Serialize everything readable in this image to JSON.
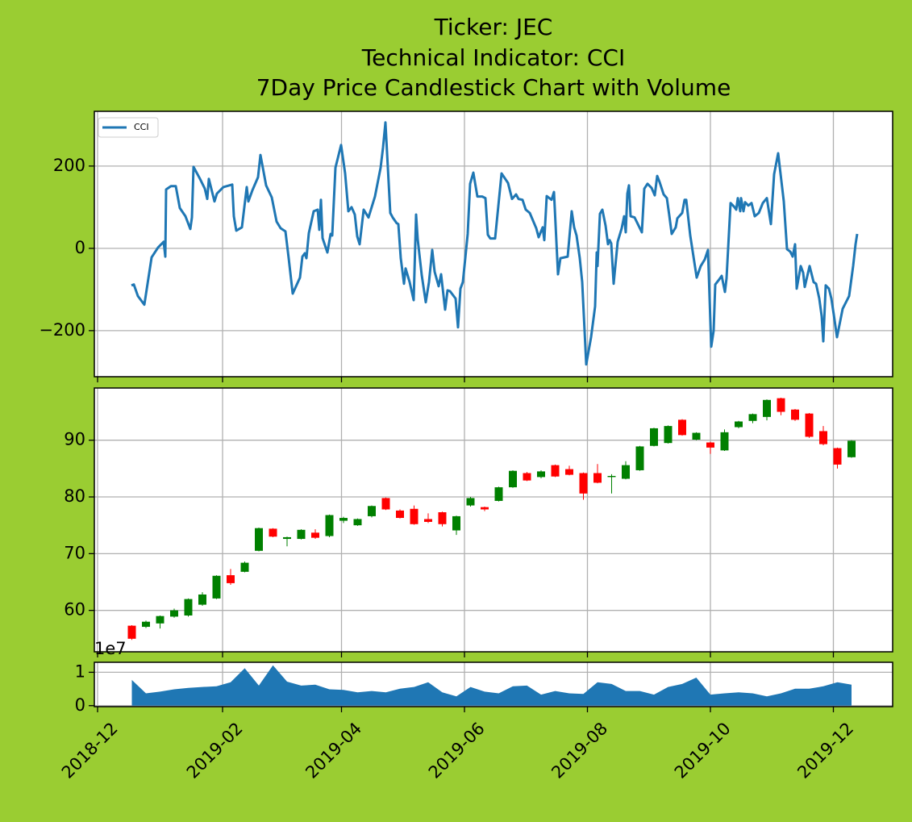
{
  "figure": {
    "title": [
      "Ticker: JEC",
      "Technical Indicator: CCI",
      "7Day Price Candlestick Chart with Volume"
    ]
  },
  "chart_data": [
    {
      "type": "line",
      "legend": "upper left",
      "grid": true,
      "x": [
        16.8,
        18.0,
        20.0,
        23.2,
        26.8,
        30.0,
        32.8,
        33.6,
        34.0,
        36.4,
        38.8,
        40.8,
        43.6,
        46.0,
        46.8,
        47.6,
        50.8,
        53.2,
        54.4,
        55.2,
        58.0,
        59.2,
        62.4,
        66.8,
        67.6,
        68.8,
        71.6,
        74.0,
        74.8,
        76.8,
        79.6,
        80.8,
        83.6,
        86.4,
        88.8,
        90.8,
        93.2,
        94.8,
        96.8,
        100.4,
        101.6,
        102.8,
        103.6,
        104.8,
        107.2,
        109.2,
        110.0,
        110.8,
        111.6,
        114.0,
        115.6,
        116.4,
        118.0,
        120.8,
        122.8,
        124.4,
        126.0,
        127.6,
        128.8,
        130.0,
        132.0,
        134.4,
        137.6,
        140.4,
        141.6,
        142.8,
        145.2,
        146.4,
        148.4,
        149.2,
        150.4,
        152.0,
        152.8,
        154.8,
        156.8,
        158.0,
        158.8,
        160.8,
        162.8,
        164.4,
        166.0,
        167.2,
        169.2,
        170.4,
        172.4,
        173.6,
        174.8,
        177.6,
        178.8,
        180.0,
        181.2,
        182.4,
        183.6,
        184.8,
        186.4,
        188.4,
        190.8,
        192.4,
        193.6,
        194.8,
        197.2,
        200.4,
        203.6,
        205.6,
        207.6,
        208.8,
        210.8,
        212.4,
        214.4,
        217.6,
        218.8,
        220.8,
        221.6,
        222.8,
        225.2,
        226.4,
        228.4,
        229.6,
        233.2,
        235.2,
        236.4,
        237.6,
        239.2,
        240.4,
        242.4,
        244.8,
        246.8,
        247.6,
        248.0,
        249.2,
        250.4,
        252.0,
        253.2,
        254.0,
        254.8,
        256.0,
        258.0,
        260.0,
        261.2,
        262.0,
        262.8,
        263.6,
        264.4,
        266.4,
        268.4,
        270.0,
        271.2,
        272.8,
        274.8,
        276.4,
        277.6,
        278.8,
        280.8,
        282.4,
        283.6,
        284.8,
        286.8,
        287.6,
        290.0,
        291.2,
        292.0,
        294.0,
        295.6,
        297.2,
        299.2,
        301.2,
        302.8,
        304.4,
        305.6,
        306.4,
        308.0,
        309.6,
        311.2,
        312.0,
        314.0,
        315.6,
        316.8,
        317.6,
        318.8,
        319.2,
        320.4,
        321.2,
        322.8,
        324.4,
        326.0,
        328.0,
        330.0,
        332.0,
        334.0,
        335.6,
        337.6,
        340.4,
        342.0,
        343.6,
        344.8,
        346.0,
        346.8,
        348.8,
        350.0,
        350.8,
        353.2,
        355.2,
        356.4,
        358.0,
        359.2,
        360.0,
        361.2,
        362.8,
        364.0,
        365.2,
        366.8,
        369.6,
        372.8,
        374.8,
        376.0,
        376.8
      ],
      "series": [
        {
          "name": "CCI",
          "color": "#1f77b4",
          "values": [
            -90,
            -88,
            -116,
            -137,
            -22,
            2,
            16,
            -20,
            143,
            151,
            151,
            98,
            78,
            47,
            75,
            198,
            169,
            145,
            120,
            169,
            114,
            133,
            149,
            155,
            78,
            43,
            51,
            149,
            114,
            141,
            173,
            227,
            153,
            124,
            65,
            49,
            41,
            -24,
            -110,
            -71,
            -20,
            -12,
            -24,
            37,
            90,
            94,
            45,
            118,
            25,
            -10,
            35,
            31,
            196,
            251,
            182,
            90,
            100,
            82,
            29,
            10,
            94,
            75,
            126,
            196,
            245,
            306,
            86,
            75,
            61,
            59,
            -24,
            -86,
            -49,
            -82,
            -126,
            82,
            22,
            -65,
            -131,
            -82,
            -4,
            -57,
            -92,
            -63,
            -149,
            -102,
            -104,
            -122,
            -192,
            -98,
            -82,
            -24,
            35,
            157,
            184,
            126,
            126,
            122,
            33,
            24,
            24,
            182,
            159,
            120,
            131,
            120,
            118,
            94,
            86,
            49,
            27,
            51,
            20,
            127,
            118,
            137,
            -63,
            -24,
            -20,
            90,
            51,
            31,
            -24,
            -82,
            -282,
            -216,
            -141,
            -10,
            -43,
            84,
            94,
            55,
            10,
            20,
            12,
            -86,
            16,
            49,
            78,
            39,
            133,
            153,
            78,
            75,
            55,
            39,
            145,
            157,
            147,
            129,
            176,
            161,
            131,
            122,
            80,
            35,
            51,
            73,
            86,
            118,
            118,
            31,
            -20,
            -71,
            -43,
            -27,
            -4,
            -239,
            -200,
            -88,
            -78,
            -67,
            -106,
            -73,
            110,
            102,
            94,
            122,
            90,
            122,
            90,
            112,
            104,
            110,
            78,
            86,
            110,
            122,
            59,
            180,
            231,
            114,
            -2,
            -8,
            -20,
            10,
            -98,
            -43,
            -59,
            -94,
            -43,
            -82,
            -86,
            -122,
            -165,
            -226,
            -90,
            -98,
            -122,
            -161,
            -216,
            -147,
            -116,
            -43,
            10,
            35
          ]
        }
      ],
      "ylim": [
        -312,
        333
      ],
      "yticks": [
        {
          "value": -200,
          "label": "−200"
        },
        0,
        200
      ]
    },
    {
      "type": "candlestick",
      "grid": true,
      "up_color": "green",
      "down_color": "red",
      "x": [
        17,
        24,
        31,
        38,
        45,
        52,
        59,
        66,
        73,
        80,
        87,
        94,
        101,
        108,
        115,
        122,
        129,
        136,
        143,
        150,
        157,
        164,
        171,
        178,
        185,
        192,
        199,
        206,
        213,
        220,
        227,
        234,
        241,
        248,
        255,
        262,
        269,
        276,
        283,
        290,
        297,
        304,
        311,
        318,
        325,
        332,
        339,
        346,
        353,
        360,
        367,
        374
      ],
      "open": [
        57.3,
        57.1,
        57.7,
        58.9,
        59.1,
        61.0,
        62.1,
        66.2,
        66.8,
        70.5,
        74.4,
        72.6,
        72.6,
        73.7,
        73.1,
        75.8,
        75.0,
        76.6,
        79.8,
        77.6,
        77.9,
        76.1,
        77.3,
        74.1,
        78.5,
        78.2,
        79.3,
        81.7,
        84.2,
        83.5,
        85.6,
        84.9,
        84.2,
        84.2,
        83.5,
        83.2,
        84.7,
        89.0,
        89.5,
        93.6,
        90.1,
        89.6,
        88.2,
        92.3,
        93.4,
        94.1,
        97.4,
        95.4,
        94.7,
        91.6,
        88.6,
        87.0
      ],
      "high": [
        57.4,
        58.2,
        59.1,
        60.3,
        62.1,
        63.2,
        66.2,
        67.3,
        68.6,
        74.6,
        74.5,
        73.0,
        74.3,
        74.3,
        76.9,
        76.5,
        76.2,
        78.5,
        79.9,
        77.8,
        78.5,
        77.1,
        77.4,
        76.7,
        80.0,
        78.3,
        81.8,
        84.7,
        84.4,
        84.7,
        85.7,
        85.5,
        84.3,
        85.8,
        84.0,
        86.3,
        89.0,
        92.2,
        92.6,
        93.7,
        91.4,
        89.7,
        91.9,
        93.4,
        94.7,
        97.2,
        97.5,
        95.5,
        94.8,
        92.5,
        88.7,
        90.0
      ],
      "low": [
        54.8,
        56.9,
        56.8,
        58.7,
        58.9,
        60.8,
        62.0,
        64.5,
        66.7,
        70.4,
        72.9,
        71.3,
        72.5,
        72.6,
        72.9,
        75.4,
        74.9,
        76.4,
        77.7,
        76.2,
        75.1,
        75.4,
        74.8,
        73.3,
        78.3,
        77.5,
        79.2,
        81.6,
        82.8,
        83.3,
        83.5,
        83.8,
        79.5,
        82.4,
        80.6,
        83.1,
        84.6,
        88.9,
        89.4,
        90.8,
        90.0,
        87.6,
        88.1,
        92.1,
        93.0,
        93.5,
        94.4,
        93.4,
        90.4,
        89.1,
        85.0,
        86.9
      ],
      "close": [
        55.0,
        58.0,
        59.0,
        60.0,
        62.0,
        62.8,
        66.1,
        64.8,
        68.4,
        74.5,
        73.0,
        72.9,
        74.2,
        72.8,
        76.8,
        76.3,
        76.1,
        78.4,
        77.8,
        76.3,
        75.2,
        75.6,
        75.2,
        76.6,
        79.8,
        77.8,
        81.7,
        84.6,
        82.9,
        84.5,
        83.6,
        83.9,
        80.6,
        82.5,
        83.7,
        85.6,
        88.9,
        92.1,
        92.5,
        90.9,
        91.3,
        88.7,
        91.4,
        93.3,
        94.6,
        97.1,
        95.0,
        93.6,
        90.6,
        89.3,
        85.7,
        89.9
      ],
      "ylim": [
        52.7,
        99.2
      ],
      "yticks": [
        60,
        70,
        80,
        90
      ]
    },
    {
      "type": "area",
      "grid": true,
      "color": "#1f77b4",
      "offset_label": "1e7",
      "x": [
        17,
        24,
        31,
        38,
        45,
        52,
        59,
        66,
        73,
        80,
        87,
        94,
        101,
        108,
        115,
        122,
        129,
        136,
        143,
        150,
        157,
        164,
        171,
        178,
        185,
        192,
        199,
        206,
        213,
        220,
        227,
        234,
        241,
        248,
        255,
        262,
        269,
        276,
        283,
        290,
        297,
        304,
        311,
        318,
        325,
        332,
        339,
        346,
        353,
        360,
        367,
        374
      ],
      "values": [
        0.77,
        0.37,
        0.42,
        0.49,
        0.53,
        0.56,
        0.58,
        0.7,
        1.12,
        0.6,
        1.21,
        0.72,
        0.6,
        0.63,
        0.49,
        0.47,
        0.4,
        0.44,
        0.4,
        0.51,
        0.56,
        0.7,
        0.4,
        0.28,
        0.56,
        0.42,
        0.37,
        0.58,
        0.6,
        0.33,
        0.44,
        0.37,
        0.35,
        0.7,
        0.65,
        0.44,
        0.44,
        0.33,
        0.56,
        0.65,
        0.84,
        0.33,
        0.37,
        0.4,
        0.37,
        0.28,
        0.37,
        0.51,
        0.51,
        0.58,
        0.7,
        0.63
      ],
      "ylim": [
        -0.03,
        1.3
      ],
      "yticks": [
        0,
        1
      ],
      "xlim": [
        -1.6,
        394.4
      ],
      "xticks": [
        {
          "value": 0,
          "label": "2018-12"
        },
        {
          "value": 62,
          "label": "2019-02"
        },
        {
          "value": 121,
          "label": "2019-04"
        },
        {
          "value": 182,
          "label": "2019-06"
        },
        {
          "value": 243,
          "label": "2019-08"
        },
        {
          "value": 304,
          "label": "2019-10"
        },
        {
          "value": 365,
          "label": "2019-12"
        }
      ]
    }
  ]
}
